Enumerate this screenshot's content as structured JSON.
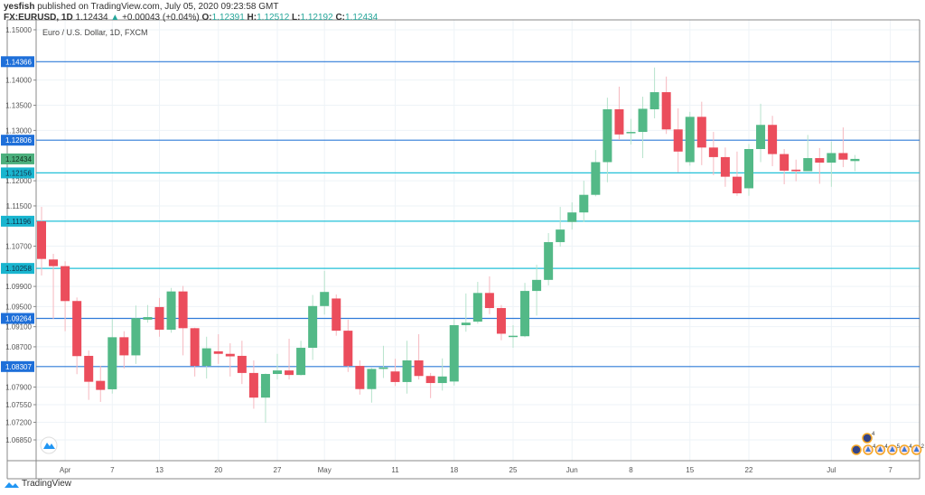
{
  "header": {
    "publisher": "yesfish",
    "published_text": "published on TradingView.com, July 05, 2020 09:23:58 GMT",
    "symbol": "FX:EURUSD, 1D",
    "last": "1.12434",
    "change": "+0.00043 (+0.04%)",
    "o_label": "O:",
    "o": "1.12391",
    "h_label": "H:",
    "h": "1.12512",
    "l_label": "L:",
    "l": "1.12192",
    "c_label": "C:",
    "c": "1.12434"
  },
  "footer": {
    "brand": "TradingView"
  },
  "colors": {
    "up": "#53b987",
    "down": "#eb4d5c",
    "blue_line": "#2f7bd8",
    "cyan_line": "#22c0d8",
    "grid": "#eef3f7"
  },
  "chart_data": {
    "type": "candlestick",
    "title": "Euro / U.S. Dollar, 1D, FXCM",
    "ylim": [
      1.06437,
      1.15197
    ],
    "yticks": [
      "1.15000",
      "1.14000",
      "1.13500",
      "1.13000",
      "1.12000",
      "1.11500",
      "1.10700",
      "1.09900",
      "1.09500",
      "1.09100",
      "1.08700",
      "1.07900",
      "1.07550",
      "1.07200",
      "1.06850"
    ],
    "xticks": [
      {
        "label": "Apr",
        "index": 2
      },
      {
        "label": "7",
        "index": 6
      },
      {
        "label": "13",
        "index": 10
      },
      {
        "label": "20",
        "index": 15
      },
      {
        "label": "27",
        "index": 20
      },
      {
        "label": "May",
        "index": 24
      },
      {
        "label": "11",
        "index": 30
      },
      {
        "label": "18",
        "index": 35
      },
      {
        "label": "25",
        "index": 40
      },
      {
        "label": "Jun",
        "index": 45
      },
      {
        "label": "8",
        "index": 50
      },
      {
        "label": "15",
        "index": 55
      },
      {
        "label": "22",
        "index": 60
      },
      {
        "label": "Jul",
        "index": 67
      },
      {
        "label": "7",
        "index": 72
      }
    ],
    "levels": [
      {
        "value": "1.14366",
        "kind": "blue"
      },
      {
        "value": "1.12806",
        "kind": "blue"
      },
      {
        "value": "1.12156",
        "kind": "cyan"
      },
      {
        "value": "1.11196",
        "kind": "cyan"
      },
      {
        "value": "1.10258",
        "kind": "cyan"
      },
      {
        "value": "1.09264",
        "kind": "blue"
      },
      {
        "value": "1.08307",
        "kind": "blue"
      }
    ],
    "last_price": "1.12434",
    "columns": [
      "date",
      "open",
      "high",
      "low",
      "close"
    ],
    "candles": [
      [
        "2020-03-30",
        1.11195,
        1.11482,
        1.10118,
        1.10446
      ],
      [
        "2020-03-31",
        1.10435,
        1.10548,
        1.09256,
        1.10303
      ],
      [
        "2020-04-01",
        1.10303,
        1.104,
        1.0901,
        1.09609
      ],
      [
        "2020-04-02",
        1.0961,
        1.0968,
        1.08156,
        1.08515
      ],
      [
        "2020-04-03",
        1.0852,
        1.08628,
        1.07646,
        1.08005
      ],
      [
        "2020-04-06",
        1.08023,
        1.08323,
        1.07605,
        1.07844
      ],
      [
        "2020-04-07",
        1.07856,
        1.0925,
        1.0777,
        1.0889
      ],
      [
        "2020-04-08",
        1.0889,
        1.0901,
        1.0827,
        1.0853
      ],
      [
        "2020-04-09",
        1.0853,
        1.0952,
        1.0836,
        1.0927
      ],
      [
        "2020-04-10",
        1.0924,
        1.0953,
        1.0918,
        1.0929
      ],
      [
        "2020-04-13",
        1.0949,
        1.0967,
        1.089,
        1.0904
      ],
      [
        "2020-04-14",
        1.0904,
        1.0987,
        1.0898,
        1.098
      ],
      [
        "2020-04-15",
        1.098,
        1.0991,
        1.0853,
        1.0907
      ],
      [
        "2020-04-16",
        1.0907,
        1.0908,
        1.0811,
        1.0832
      ],
      [
        "2020-04-17",
        1.0832,
        1.089,
        1.0807,
        1.0867
      ],
      [
        "2020-04-20",
        1.0861,
        1.0895,
        1.0836,
        1.0856
      ],
      [
        "2020-04-21",
        1.0856,
        1.0877,
        1.0811,
        1.0851
      ],
      [
        "2020-04-22",
        1.0852,
        1.0882,
        1.0796,
        1.0818
      ],
      [
        "2020-04-23",
        1.0818,
        1.0843,
        1.0747,
        1.0769
      ],
      [
        "2020-04-24",
        1.0769,
        1.0817,
        1.0719,
        1.0816
      ],
      [
        "2020-04-27",
        1.0816,
        1.0856,
        1.0805,
        1.0823
      ],
      [
        "2020-04-28",
        1.0823,
        1.0886,
        1.0805,
        1.0814
      ],
      [
        "2020-04-29",
        1.0814,
        1.0882,
        1.0813,
        1.0868
      ],
      [
        "2020-04-30",
        1.0868,
        1.0973,
        1.0844,
        1.0951
      ],
      [
        "2020-05-01",
        1.0951,
        1.1021,
        1.0934,
        1.0979
      ],
      [
        "2020-05-04",
        1.0966,
        1.0974,
        1.0892,
        1.0902
      ],
      [
        "2020-05-05",
        1.0902,
        1.0924,
        1.082,
        1.0832
      ],
      [
        "2020-05-06",
        1.0832,
        1.0843,
        1.0775,
        1.0786
      ],
      [
        "2020-05-07",
        1.0786,
        1.0828,
        1.0759,
        1.0826
      ],
      [
        "2020-05-08",
        1.0826,
        1.0872,
        1.0808,
        1.0829
      ],
      [
        "2020-05-11",
        1.0821,
        1.0846,
        1.0792,
        1.08
      ],
      [
        "2020-05-12",
        1.08,
        1.0882,
        1.0777,
        1.0843
      ],
      [
        "2020-05-13",
        1.0843,
        1.0895,
        1.0805,
        1.0812
      ],
      [
        "2020-05-14",
        1.0812,
        1.0818,
        1.0768,
        1.0798
      ],
      [
        "2020-05-15",
        1.0798,
        1.0847,
        1.0783,
        1.0811
      ],
      [
        "2020-05-18",
        1.0801,
        1.0925,
        1.0793,
        1.0913
      ],
      [
        "2020-05-19",
        1.0913,
        1.0976,
        1.09,
        1.0918
      ],
      [
        "2020-05-20",
        1.092,
        1.0999,
        1.0916,
        1.0977
      ],
      [
        "2020-05-21",
        1.0977,
        1.101,
        1.0935,
        1.0947
      ],
      [
        "2020-05-22",
        1.0947,
        1.0953,
        1.0883,
        1.0896
      ],
      [
        "2020-05-25",
        1.089,
        1.0913,
        1.0868,
        1.0892
      ],
      [
        "2020-05-26",
        1.0891,
        1.0997,
        1.0889,
        1.0981
      ],
      [
        "2020-05-27",
        1.0981,
        1.1033,
        1.0932,
        1.1003
      ],
      [
        "2020-05-28",
        1.1003,
        1.1096,
        1.0992,
        1.1078
      ],
      [
        "2020-05-29",
        1.1078,
        1.1148,
        1.1069,
        1.1103
      ],
      [
        "2020-06-01",
        1.1118,
        1.1157,
        1.1103,
        1.1137
      ],
      [
        "2020-06-02",
        1.1137,
        1.12,
        1.1118,
        1.1172
      ],
      [
        "2020-06-03",
        1.1172,
        1.1261,
        1.1169,
        1.1237
      ],
      [
        "2020-06-04",
        1.1237,
        1.1365,
        1.1197,
        1.1342
      ],
      [
        "2020-06-05",
        1.1342,
        1.1387,
        1.1281,
        1.1292
      ],
      [
        "2020-06-08",
        1.1296,
        1.1323,
        1.1272,
        1.1297
      ],
      [
        "2020-06-09",
        1.1297,
        1.1367,
        1.1245,
        1.1343
      ],
      [
        "2020-06-10",
        1.1342,
        1.1425,
        1.1324,
        1.1376
      ],
      [
        "2020-06-11",
        1.1376,
        1.1407,
        1.1293,
        1.1302
      ],
      [
        "2020-06-12",
        1.1302,
        1.1344,
        1.1217,
        1.1258
      ],
      [
        "2020-06-15",
        1.1237,
        1.1337,
        1.123,
        1.1327
      ],
      [
        "2020-06-16",
        1.1327,
        1.1357,
        1.1231,
        1.1266
      ],
      [
        "2020-06-17",
        1.1266,
        1.1297,
        1.1211,
        1.1247
      ],
      [
        "2020-06-18",
        1.1247,
        1.1266,
        1.1188,
        1.1208
      ],
      [
        "2020-06-19",
        1.1208,
        1.1258,
        1.117,
        1.1175
      ],
      [
        "2020-06-22",
        1.1185,
        1.1273,
        1.117,
        1.1263
      ],
      [
        "2020-06-23",
        1.1263,
        1.1353,
        1.1237,
        1.1311
      ],
      [
        "2020-06-24",
        1.1311,
        1.1329,
        1.1229,
        1.1253
      ],
      [
        "2020-06-25",
        1.1253,
        1.1263,
        1.1193,
        1.122
      ],
      [
        "2020-06-26",
        1.1222,
        1.1242,
        1.1199,
        1.1219
      ],
      [
        "2020-06-29",
        1.1219,
        1.1291,
        1.1219,
        1.1245
      ],
      [
        "2020-06-30",
        1.1245,
        1.1265,
        1.1194,
        1.1236
      ],
      [
        "2020-07-01",
        1.1236,
        1.1278,
        1.1188,
        1.1255
      ],
      [
        "2020-07-02",
        1.1255,
        1.1306,
        1.1227,
        1.1242
      ],
      [
        "2020-07-03",
        1.12391,
        1.12512,
        1.12192,
        1.12434
      ]
    ],
    "events": [
      {
        "label": "4"
      },
      {
        "label": "4"
      },
      {
        "label": "5"
      },
      {
        "label": "4"
      },
      {
        "label": "2"
      }
    ]
  }
}
